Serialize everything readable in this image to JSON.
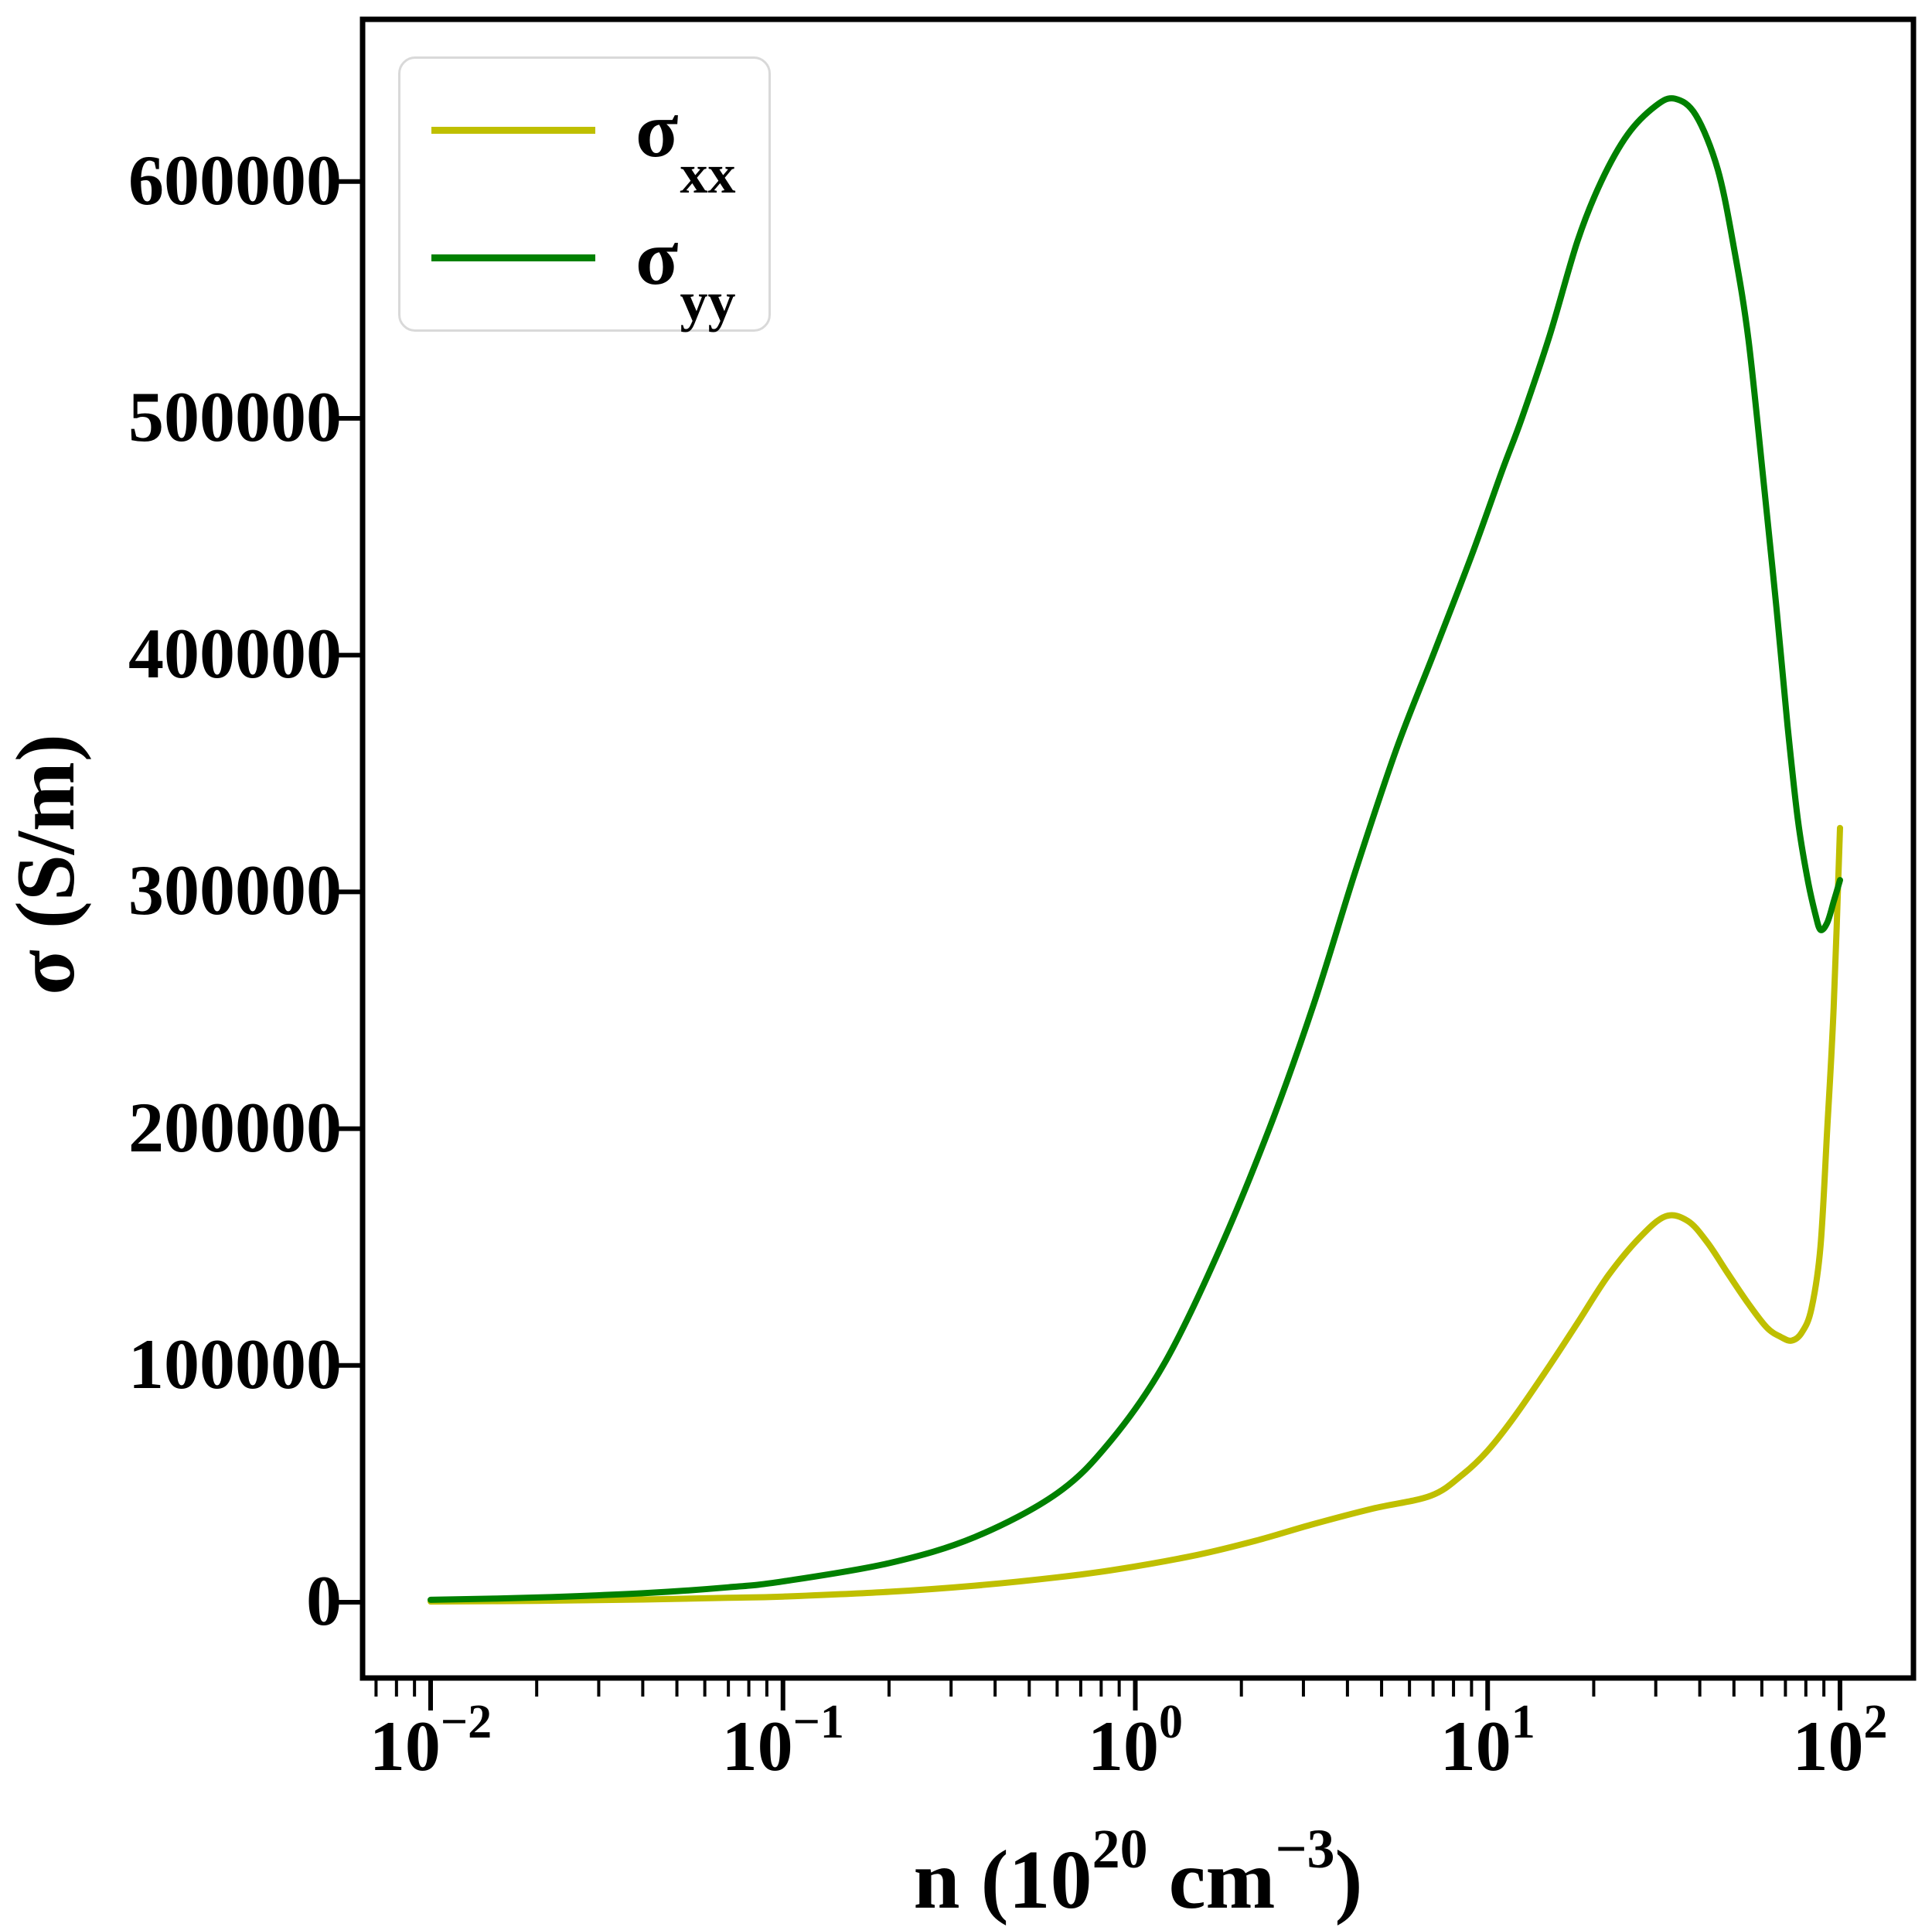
{
  "chart_data": {
    "type": "line",
    "title": "",
    "xlabel": "n (10^20 cm^-3)",
    "xlabel_parts": {
      "p1": "n (10",
      "sup1": "20",
      "p2": " cm",
      "sup2": "−3",
      "p3": ")"
    },
    "ylabel": "σ (S/m)",
    "x_scale": "log",
    "grid": false,
    "xlim": [
      0.0064,
      160
    ],
    "ylim": [
      -32000,
      668000
    ],
    "x_ticks": [
      {
        "base": "10",
        "exp": "−2",
        "value": 0.01
      },
      {
        "base": "10",
        "exp": "−1",
        "value": 0.1
      },
      {
        "base": "10",
        "exp": "0",
        "value": 1
      },
      {
        "base": "10",
        "exp": "1",
        "value": 10
      },
      {
        "base": "10",
        "exp": "2",
        "value": 100
      }
    ],
    "y_ticks": [
      {
        "label": "0",
        "value": 0
      },
      {
        "label": "100000",
        "value": 100000
      },
      {
        "label": "200000",
        "value": 200000
      },
      {
        "label": "300000",
        "value": 300000
      },
      {
        "label": "400000",
        "value": 400000
      },
      {
        "label": "500000",
        "value": 500000
      },
      {
        "label": "600000",
        "value": 600000
      }
    ],
    "legend": {
      "location": "upper left"
    },
    "series": [
      {
        "name": "sigma_xx",
        "legend_base": "σ",
        "legend_sub": "xx",
        "color": "#bfbf00",
        "points": [
          [
            0.01,
            300
          ],
          [
            0.02,
            600
          ],
          [
            0.04,
            1150
          ],
          [
            0.07,
            1850
          ],
          [
            0.1,
            2400
          ],
          [
            0.2,
            4400
          ],
          [
            0.35,
            7000
          ],
          [
            0.6,
            10500
          ],
          [
            0.9,
            14000
          ],
          [
            1.5,
            20000
          ],
          [
            2.2,
            26000
          ],
          [
            3.2,
            33000
          ],
          [
            4.7,
            39500
          ],
          [
            6.9,
            45000
          ],
          [
            8.5,
            54000
          ],
          [
            10,
            64000
          ],
          [
            12,
            79000
          ],
          [
            15,
            100000
          ],
          [
            18,
            118000
          ],
          [
            22,
            138000
          ],
          [
            27,
            154000
          ],
          [
            32,
            163000
          ],
          [
            37,
            161000
          ],
          [
            42,
            152000
          ],
          [
            48,
            139000
          ],
          [
            55,
            126000
          ],
          [
            62,
            116000
          ],
          [
            68,
            112000
          ],
          [
            73,
            110500
          ],
          [
            78,
            114000
          ],
          [
            83,
            124000
          ],
          [
            88,
            150000
          ],
          [
            92,
            200000
          ],
          [
            96,
            252000
          ],
          [
            100,
            327000
          ]
        ]
      },
      {
        "name": "sigma_yy",
        "legend_base": "σ",
        "legend_sub": "yy",
        "color": "#008000",
        "points": [
          [
            0.01,
            1000
          ],
          [
            0.02,
            2000
          ],
          [
            0.04,
            3800
          ],
          [
            0.07,
            6300
          ],
          [
            0.1,
            8800
          ],
          [
            0.2,
            16500
          ],
          [
            0.35,
            27500
          ],
          [
            0.6,
            46000
          ],
          [
            0.85,
            68000
          ],
          [
            1.2,
            100000
          ],
          [
            1.7,
            146000
          ],
          [
            2.4,
            200000
          ],
          [
            3.2,
            252000
          ],
          [
            4.2,
            308000
          ],
          [
            5.5,
            360000
          ],
          [
            7,
            400000
          ],
          [
            9,
            442000
          ],
          [
            11,
            478000
          ],
          [
            12.5,
            500000
          ],
          [
            15,
            535000
          ],
          [
            18,
            575000
          ],
          [
            21,
            600000
          ],
          [
            25,
            620000
          ],
          [
            30,
            632000
          ],
          [
            34,
            635000
          ],
          [
            39,
            628000
          ],
          [
            45,
            605000
          ],
          [
            50,
            572000
          ],
          [
            55,
            533000
          ],
          [
            61,
            470000
          ],
          [
            66,
            420000
          ],
          [
            71,
            370000
          ],
          [
            76,
            330000
          ],
          [
            81,
            305000
          ],
          [
            85,
            291000
          ],
          [
            88,
            284000
          ],
          [
            92,
            287000
          ],
          [
            96,
            296000
          ],
          [
            100,
            305000
          ]
        ]
      }
    ]
  }
}
